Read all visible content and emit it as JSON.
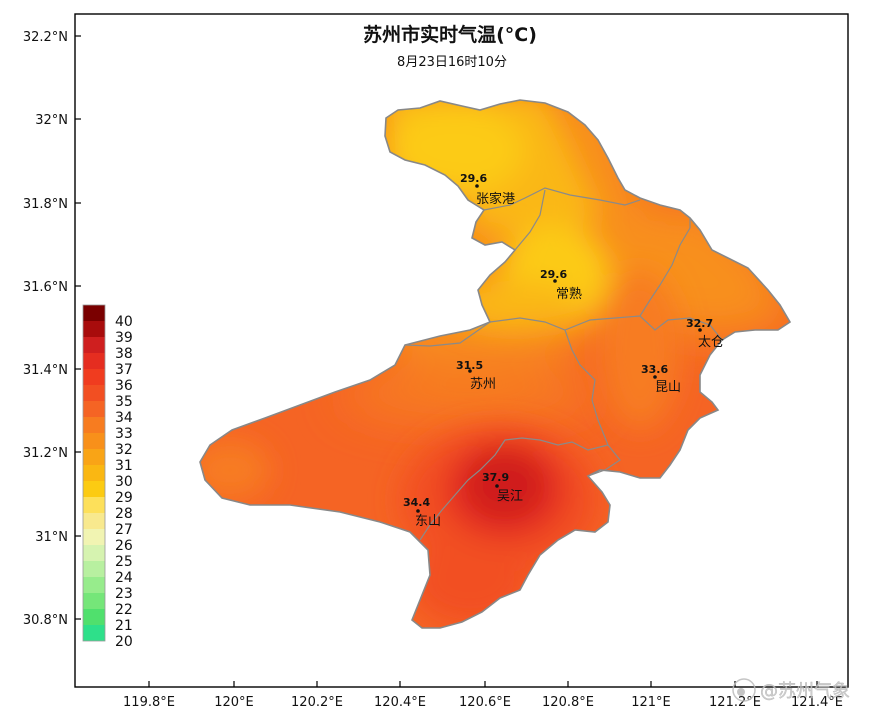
{
  "title": "苏州市实时气温(°C)",
  "subtitle": "8月23日16时10分",
  "y_ticks": [
    "32.2°N",
    "32°N",
    "31.8°N",
    "31.6°N",
    "31.4°N",
    "31.2°N",
    "31°N",
    "30.8°N"
  ],
  "x_ticks": [
    "119.8°E",
    "120°E",
    "120.2°E",
    "120.4°E",
    "120.6°E",
    "120.8°E",
    "121°E",
    "121.2°E",
    "121.4°E"
  ],
  "legend": {
    "labels": [
      "40",
      "39",
      "38",
      "37",
      "36",
      "35",
      "34",
      "33",
      "32",
      "31",
      "30",
      "29",
      "28",
      "27",
      "26",
      "25",
      "24",
      "23",
      "22",
      "21",
      "20"
    ],
    "colors": [
      "#7a0000",
      "#a80c0c",
      "#cf1f1f",
      "#e52d20",
      "#f03c1f",
      "#f24f22",
      "#f56424",
      "#f77c20",
      "#f8901a",
      "#f9a416",
      "#fab712",
      "#fccb12",
      "#fde05a",
      "#f8e98e",
      "#f1f4b2",
      "#d6f3b0",
      "#b8f0a0",
      "#97ec8c",
      "#75e679",
      "#50e06d",
      "#2ee08a"
    ]
  },
  "stations": [
    {
      "name": "张家港",
      "value": "29.6"
    },
    {
      "name": "常熟",
      "value": "29.6"
    },
    {
      "name": "太仓",
      "value": "32.7"
    },
    {
      "name": "苏州",
      "value": "31.5"
    },
    {
      "name": "昆山",
      "value": "33.6"
    },
    {
      "name": "吴江",
      "value": "37.9"
    },
    {
      "name": "东山",
      "value": "34.4"
    }
  ],
  "watermark": "@苏州气象"
}
